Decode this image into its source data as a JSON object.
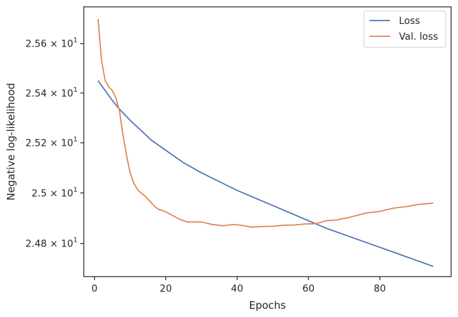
{
  "chart_data": {
    "type": "line",
    "xlabel": "Epochs",
    "ylabel": "Negative log-likelihood",
    "xlim": [
      -3,
      100
    ],
    "ylim": [
      24.67,
      25.75
    ],
    "yscale": "log",
    "grid": false,
    "legend_position": "top-right",
    "x_ticks": [
      0,
      20,
      40,
      60,
      80
    ],
    "y_ticks": [
      {
        "value": 24.8,
        "mantissa": "2.48",
        "exponent": "1"
      },
      {
        "value": 25.0,
        "mantissa": "2.5",
        "exponent": "1"
      },
      {
        "value": 25.2,
        "mantissa": "2.52",
        "exponent": "1"
      },
      {
        "value": 25.4,
        "mantissa": "2.54",
        "exponent": "1"
      },
      {
        "value": 25.6,
        "mantissa": "2.56",
        "exponent": "1"
      }
    ],
    "series": [
      {
        "name": "Loss",
        "color": "#4c72b0",
        "points": [
          [
            1,
            25.45
          ],
          [
            3,
            25.41
          ],
          [
            5,
            25.37
          ],
          [
            7,
            25.335
          ],
          [
            10,
            25.29
          ],
          [
            13,
            25.25
          ],
          [
            16,
            25.21
          ],
          [
            20,
            25.17
          ],
          [
            25,
            25.12
          ],
          [
            30,
            25.08
          ],
          [
            35,
            25.045
          ],
          [
            40,
            25.01
          ],
          [
            45,
            24.98
          ],
          [
            50,
            24.95
          ],
          [
            55,
            24.92
          ],
          [
            60,
            24.89
          ],
          [
            65,
            24.86
          ],
          [
            70,
            24.835
          ],
          [
            75,
            24.81
          ],
          [
            80,
            24.785
          ],
          [
            85,
            24.76
          ],
          [
            90,
            24.735
          ],
          [
            95,
            24.71
          ]
        ]
      },
      {
        "name": "Val. loss",
        "color": "#dd8452",
        "points": [
          [
            1,
            25.7
          ],
          [
            2,
            25.53
          ],
          [
            3,
            25.45
          ],
          [
            4,
            25.425
          ],
          [
            5,
            25.41
          ],
          [
            6,
            25.38
          ],
          [
            7,
            25.33
          ],
          [
            8,
            25.23
          ],
          [
            9,
            25.15
          ],
          [
            10,
            25.08
          ],
          [
            11,
            25.04
          ],
          [
            12,
            25.015
          ],
          [
            13,
            25.0
          ],
          [
            14,
            24.99
          ],
          [
            15,
            24.975
          ],
          [
            16,
            24.96
          ],
          [
            17,
            24.945
          ],
          [
            18,
            24.935
          ],
          [
            20,
            24.925
          ],
          [
            22,
            24.91
          ],
          [
            24,
            24.895
          ],
          [
            26,
            24.885
          ],
          [
            28,
            24.885
          ],
          [
            30,
            24.885
          ],
          [
            33,
            24.875
          ],
          [
            36,
            24.87
          ],
          [
            39,
            24.875
          ],
          [
            41,
            24.872
          ],
          [
            44,
            24.865
          ],
          [
            47,
            24.867
          ],
          [
            50,
            24.868
          ],
          [
            53,
            24.872
          ],
          [
            56,
            24.873
          ],
          [
            59,
            24.877
          ],
          [
            62,
            24.878
          ],
          [
            65,
            24.89
          ],
          [
            68,
            24.893
          ],
          [
            72,
            24.905
          ],
          [
            76,
            24.92
          ],
          [
            80,
            24.927
          ],
          [
            84,
            24.94
          ],
          [
            88,
            24.947
          ],
          [
            91,
            24.955
          ],
          [
            93,
            24.957
          ],
          [
            95,
            24.96
          ]
        ]
      }
    ]
  }
}
